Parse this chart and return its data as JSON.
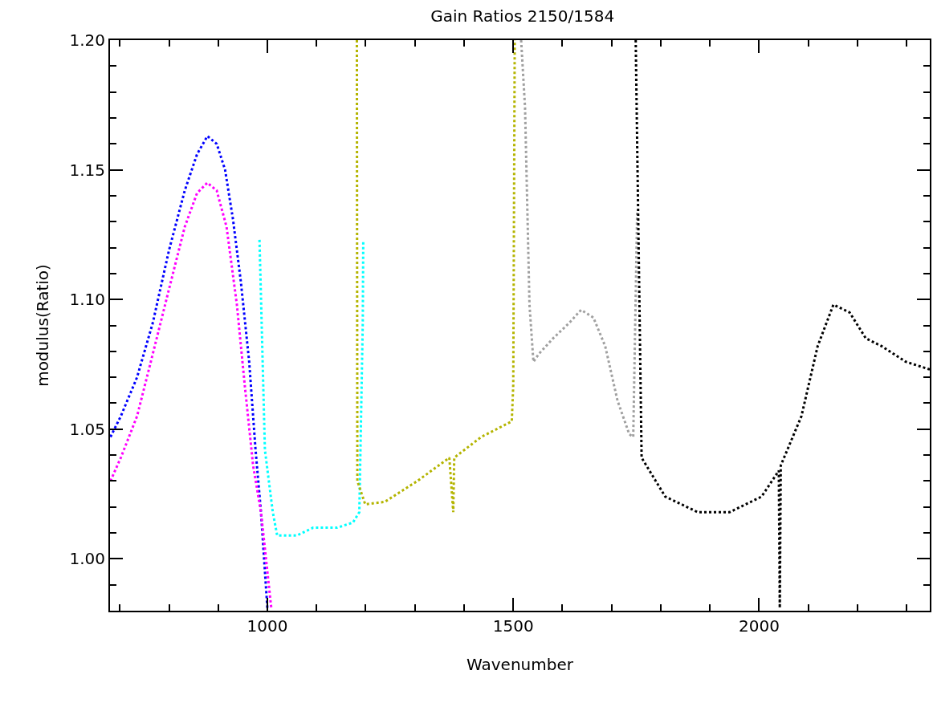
{
  "chart_data": {
    "type": "line",
    "title": "Gain Ratios 2150/1584",
    "xlabel": "Wavenumber",
    "ylabel": "modulus(Ratio)",
    "xlim": [
      680,
      2347
    ],
    "ylim": [
      0.98,
      1.2
    ],
    "xticks": [
      1000,
      1500,
      2000
    ],
    "yticks": [
      {
        "value": 1,
        "label": "1.00"
      },
      {
        "value": 1.05,
        "label": "1.05"
      },
      {
        "value": 1.1,
        "label": "1.10"
      },
      {
        "value": 1.15,
        "label": "1.15"
      },
      {
        "value": 1.2,
        "label": "1.20"
      }
    ],
    "grid": false,
    "line_style": "dotted",
    "series": [
      {
        "color": "#0000ff",
        "x": [
          681,
          702,
          735,
          767,
          800,
          832,
          857,
          878,
          897,
          914,
          930,
          946,
          963,
          976,
          987,
          1000
        ],
        "values": [
          1.047,
          1.055,
          1.07,
          1.091,
          1.119,
          1.142,
          1.156,
          1.163,
          1.16,
          1.15,
          1.131,
          1.107,
          1.076,
          1.042,
          1.018,
          0.981
        ]
      },
      {
        "color": "#ff00ff",
        "x": [
          681,
          702,
          735,
          767,
          800,
          832,
          857,
          878,
          897,
          917,
          938,
          954,
          971,
          987,
          1008
        ],
        "values": [
          1.03,
          1.039,
          1.055,
          1.079,
          1.104,
          1.128,
          1.141,
          1.145,
          1.142,
          1.128,
          1.098,
          1.067,
          1.036,
          1.018,
          0.981
        ]
      },
      {
        "color": "#00ffff",
        "x": [
          984,
          995,
          1011,
          1020,
          1060,
          1093,
          1142,
          1174,
          1187,
          1194,
          1195
        ],
        "values": [
          1.123,
          1.042,
          1.018,
          1.009,
          1.009,
          1.012,
          1.012,
          1.014,
          1.018,
          1.091,
          1.123
        ]
      },
      {
        "color": "#b4b400",
        "x": [
          1182,
          1183,
          1199,
          1239,
          1305,
          1370,
          1378,
          1380,
          1435,
          1497,
          1500,
          1503
        ],
        "values": [
          1.2,
          1.03,
          1.021,
          1.022,
          1.03,
          1.039,
          1.018,
          1.039,
          1.047,
          1.053,
          1.067,
          1.2
        ]
      },
      {
        "color": "#a0a0a0",
        "x": [
          1516,
          1524,
          1533,
          1541,
          1552,
          1581,
          1614,
          1638,
          1663,
          1687,
          1712,
          1736,
          1744,
          1752
        ],
        "values": [
          1.2,
          1.174,
          1.098,
          1.076,
          1.079,
          1.085,
          1.091,
          1.096,
          1.093,
          1.082,
          1.061,
          1.048,
          1.047,
          1.134
        ]
      },
      {
        "color": "#000000",
        "x": [
          1749,
          1761,
          1809,
          1875,
          1940,
          2005,
          2040,
          2042,
          2044,
          2086,
          2119,
          2151,
          2184,
          2217,
          2249,
          2298,
          2347
        ],
        "values": [
          1.2,
          1.039,
          1.024,
          1.018,
          1.018,
          1.024,
          1.034,
          0.981,
          1.036,
          1.055,
          1.082,
          1.098,
          1.095,
          1.085,
          1.082,
          1.076,
          1.073
        ]
      }
    ]
  }
}
